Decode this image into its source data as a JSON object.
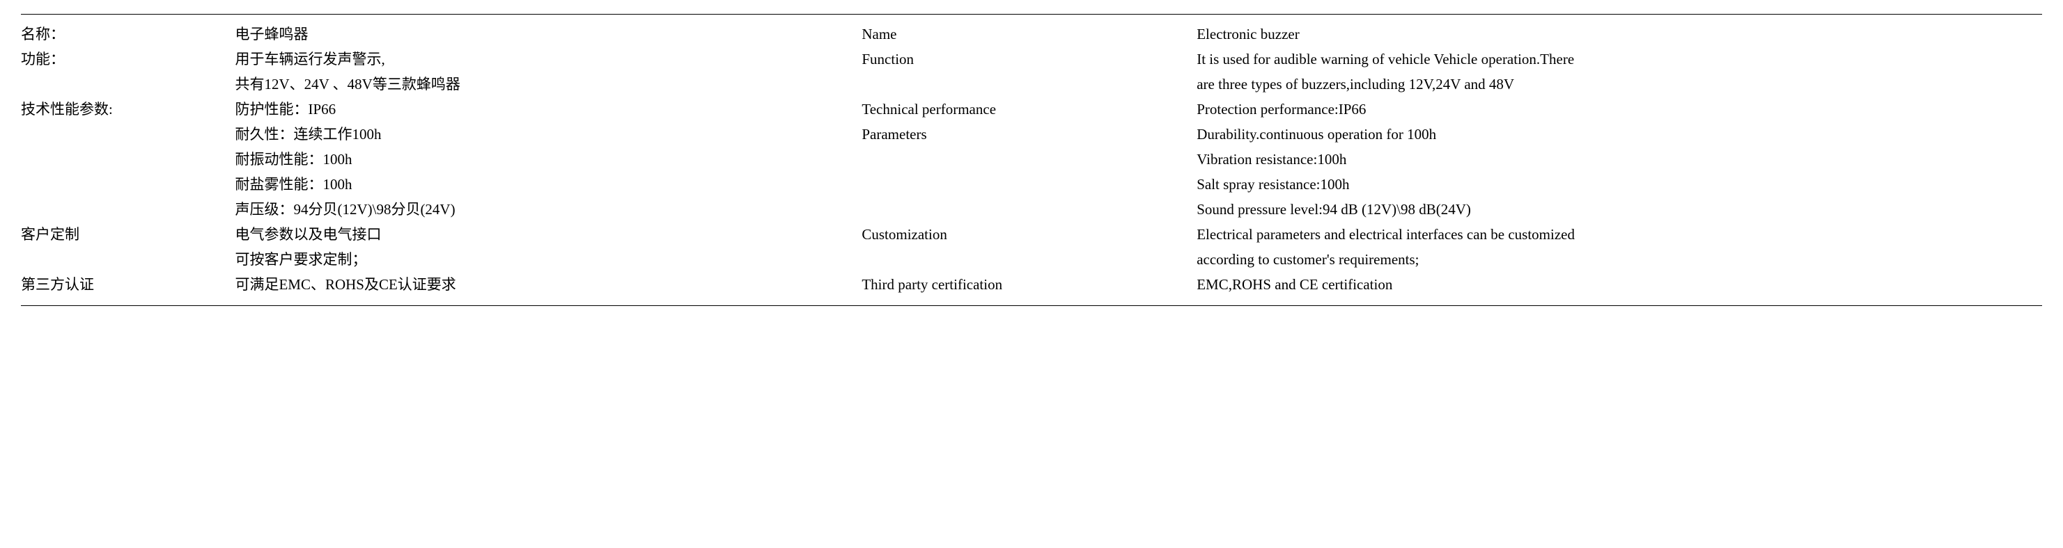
{
  "rows": [
    {
      "cn_label": "名称：",
      "cn_value": [
        "电子蜂鸣器"
      ],
      "en_label": [
        "Name"
      ],
      "en_value": [
        "Electronic buzzer"
      ]
    },
    {
      "cn_label": "功能：",
      "cn_value": [
        "用于车辆运行发声警示,",
        "共有12V、24V 、48V等三款蜂鸣器"
      ],
      "en_label": [
        "Function"
      ],
      "en_value": [
        "It is used for audible warning of vehicle Vehicle operation.There",
        "are three types of buzzers,including 12V,24V and 48V"
      ]
    },
    {
      "cn_label": "技术性能参数:",
      "cn_value": [
        "防护性能：IP66",
        "耐久性：连续工作100h",
        "耐振动性能：100h",
        "耐盐雾性能：100h",
        "声压级：94分贝(12V)\\98分贝(24V)"
      ],
      "en_label": [
        "Technical performance",
        "Parameters"
      ],
      "en_value": [
        "Protection  performance:IP66",
        "Durability.continuous operation for 100h",
        "Vibration resistance:100h",
        "Salt spray resistance:100h",
        "Sound pressure level:94 dB (12V)\\98 dB(24V)"
      ]
    },
    {
      "cn_label": "客户定制",
      "cn_value": [
        "电气参数以及电气接口",
        "可按客户要求定制；"
      ],
      "en_label": [
        "Customization"
      ],
      "en_value": [
        "Electrical parameters and electrical interfaces can be customized",
        "according to customer's requirements;"
      ]
    },
    {
      "cn_label": "第三方认证",
      "cn_value": [
        "可满足EMC、ROHS及CE认证要求"
      ],
      "en_label": [
        "Third party certification"
      ],
      "en_value": [
        "EMC,ROHS and CE certification"
      ]
    }
  ]
}
